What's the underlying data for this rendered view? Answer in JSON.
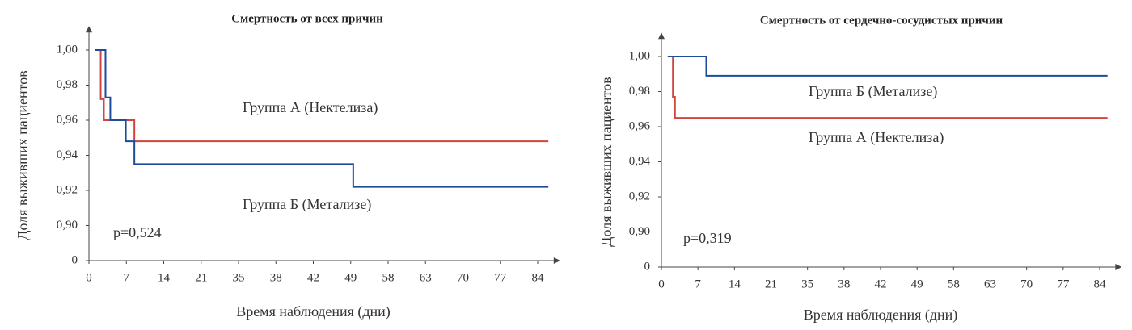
{
  "chart_data": [
    {
      "type": "step",
      "title": "Смертность от всех причин",
      "xlabel": "Время наблюдения (дни)",
      "ylabel": "Доля выживших пациентов",
      "xlim": [
        0,
        87
      ],
      "ylim": [
        0,
        1.01
      ],
      "xticks": [
        0,
        7,
        14,
        21,
        35,
        38,
        42,
        49,
        58,
        63,
        70,
        77,
        84
      ],
      "yticks": [
        0,
        {
          "value": 0.9,
          "label": "0,90"
        },
        {
          "value": 0.92,
          "label": "0,92"
        },
        {
          "value": 0.94,
          "label": "0,94"
        },
        {
          "value": 0.96,
          "label": "0,96"
        },
        {
          "value": 0.98,
          "label": "0,98"
        },
        {
          "value": 1.0,
          "label": "1,00"
        }
      ],
      "series": [
        {
          "name": "Группа А (Нектелиза)",
          "color": "#d2453f",
          "x": [
            1.2,
            2.2,
            2.8,
            8.5,
            86
          ],
          "values": [
            1.0,
            0.972,
            0.96,
            0.948,
            0.948
          ]
        },
        {
          "name": "Группа Б (Метализе)",
          "color": "#1f4b99",
          "x": [
            1.2,
            3.1,
            4.0,
            6.9,
            8.5,
            49.6,
            86
          ],
          "values": [
            1.0,
            0.973,
            0.96,
            0.948,
            0.935,
            0.922,
            0.922
          ]
        }
      ],
      "annotations": [
        "p=0,524"
      ]
    },
    {
      "type": "step",
      "title": "Смертность от сердечно-сосудистых причин",
      "xlabel": "Время наблюдения (дни)",
      "ylabel": "Доля выживших пациентов",
      "xlim": [
        0,
        87
      ],
      "ylim": [
        0,
        1.01
      ],
      "xticks": [
        0,
        7,
        14,
        21,
        35,
        38,
        42,
        49,
        58,
        63,
        70,
        77,
        84
      ],
      "yticks": [
        0,
        {
          "value": 0.9,
          "label": "0,90"
        },
        {
          "value": 0.92,
          "label": "0,92"
        },
        {
          "value": 0.94,
          "label": "0,94"
        },
        {
          "value": 0.96,
          "label": "0,96"
        },
        {
          "value": 0.98,
          "label": "0,98"
        },
        {
          "value": 1.0,
          "label": "1,00"
        }
      ],
      "series": [
        {
          "name": "Группа А (Нектелиза)",
          "color": "#d2453f",
          "x": [
            1.7,
            2.2,
            2.6,
            85.5
          ],
          "values": [
            1.0,
            0.977,
            0.965,
            0.965
          ]
        },
        {
          "name": "Группа Б (Метализе)",
          "color": "#1f4b99",
          "x": [
            1.2,
            8.6,
            85.5
          ],
          "values": [
            1.0,
            0.989,
            0.989
          ]
        }
      ],
      "annotations": [
        "p=0,319"
      ]
    }
  ]
}
